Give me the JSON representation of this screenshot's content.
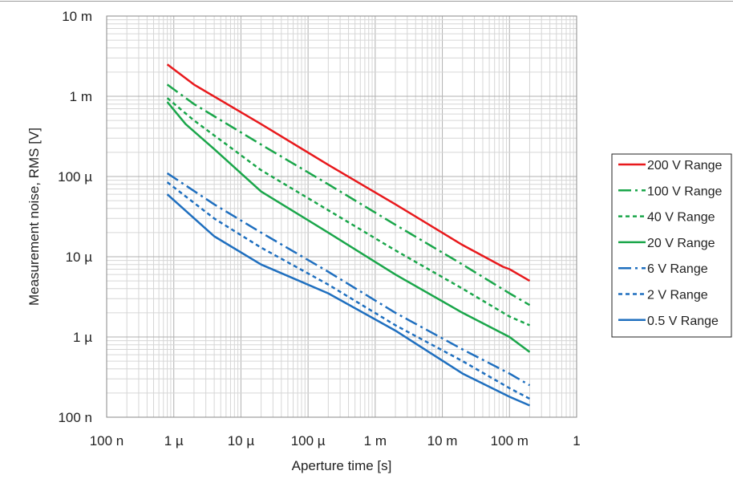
{
  "chart_data": {
    "type": "line",
    "title": "",
    "xlabel": "Aperture time [s]",
    "ylabel": "Measurement noise, RMS [V]",
    "xscale": "log",
    "yscale": "log",
    "xlim": [
      1e-07,
      1
    ],
    "ylim": [
      1e-07,
      0.01
    ],
    "grid": true,
    "legend_position": "right",
    "x_ticks": [
      {
        "value": 1e-07,
        "label": "100 n"
      },
      {
        "value": 1e-06,
        "label": "1 µ"
      },
      {
        "value": 1e-05,
        "label": "10 µ"
      },
      {
        "value": 0.0001,
        "label": "100 µ"
      },
      {
        "value": 0.001,
        "label": "1 m"
      },
      {
        "value": 0.01,
        "label": "10 m"
      },
      {
        "value": 0.1,
        "label": "100 m"
      },
      {
        "value": 1,
        "label": "1"
      }
    ],
    "y_ticks": [
      {
        "value": 1e-07,
        "label": "100 n"
      },
      {
        "value": 1e-06,
        "label": "1 µ"
      },
      {
        "value": 1e-05,
        "label": "10 µ"
      },
      {
        "value": 0.0001,
        "label": "100 µ"
      },
      {
        "value": 0.001,
        "label": "1 m"
      },
      {
        "value": 0.01,
        "label": "10 m"
      }
    ],
    "series": [
      {
        "name": "200 V Range",
        "color": "#e8191c",
        "dash": "solid",
        "x": [
          8e-07,
          2e-06,
          2e-05,
          0.0002,
          0.002,
          0.02,
          0.08,
          0.1,
          0.2
        ],
        "y": [
          0.0025,
          0.0014,
          0.00045,
          0.00014,
          4.5e-05,
          1.4e-05,
          7.5e-06,
          7e-06,
          5e-06
        ]
      },
      {
        "name": "100 V Range",
        "color": "#1aa64a",
        "dash": "dashdot",
        "x": [
          8e-07,
          2e-06,
          2e-05,
          0.0002,
          0.002,
          0.02,
          0.1,
          0.2
        ],
        "y": [
          0.0014,
          0.0008,
          0.00025,
          8e-05,
          2.5e-05,
          8e-06,
          3.5e-06,
          2.5e-06
        ]
      },
      {
        "name": "40 V Range",
        "color": "#1aa64a",
        "dash": "dash",
        "x": [
          8e-07,
          2e-06,
          2e-05,
          0.0002,
          0.002,
          0.02,
          0.1,
          0.2
        ],
        "y": [
          0.00095,
          0.0005,
          0.00012,
          3.8e-05,
          1.2e-05,
          4e-06,
          1.8e-06,
          1.4e-06
        ]
      },
      {
        "name": "20 V Range",
        "color": "#1aa64a",
        "dash": "solid",
        "x": [
          8e-07,
          1.5e-06,
          4e-06,
          2e-05,
          0.0002,
          0.002,
          0.02,
          0.1,
          0.2
        ],
        "y": [
          0.00085,
          0.00045,
          0.00022,
          6.5e-05,
          2e-05,
          6e-06,
          2e-06,
          1e-06,
          6.5e-07
        ]
      },
      {
        "name": "6 V Range",
        "color": "#1f6fbf",
        "dash": "dashdot",
        "x": [
          8e-07,
          4e-06,
          2e-05,
          0.0002,
          0.002,
          0.02,
          0.1,
          0.2
        ],
        "y": [
          0.00011,
          4.5e-05,
          2e-05,
          6.5e-06,
          2e-06,
          7e-07,
          3.5e-07,
          2.5e-07
        ]
      },
      {
        "name": "2 V Range",
        "color": "#1f6fbf",
        "dash": "dash",
        "x": [
          8e-07,
          4e-06,
          2e-05,
          0.0002,
          0.002,
          0.02,
          0.1,
          0.2
        ],
        "y": [
          8.5e-05,
          3e-05,
          1.3e-05,
          4.5e-06,
          1.4e-06,
          5e-07,
          2.3e-07,
          1.7e-07
        ]
      },
      {
        "name": "0.5 V Range",
        "color": "#1f6fbf",
        "dash": "solid",
        "x": [
          8e-07,
          4e-06,
          2e-05,
          0.0002,
          0.002,
          0.02,
          0.1,
          0.2
        ],
        "y": [
          6e-05,
          1.8e-05,
          8e-06,
          3.5e-06,
          1.2e-06,
          3.5e-07,
          1.8e-07,
          1.4e-07
        ]
      }
    ]
  }
}
